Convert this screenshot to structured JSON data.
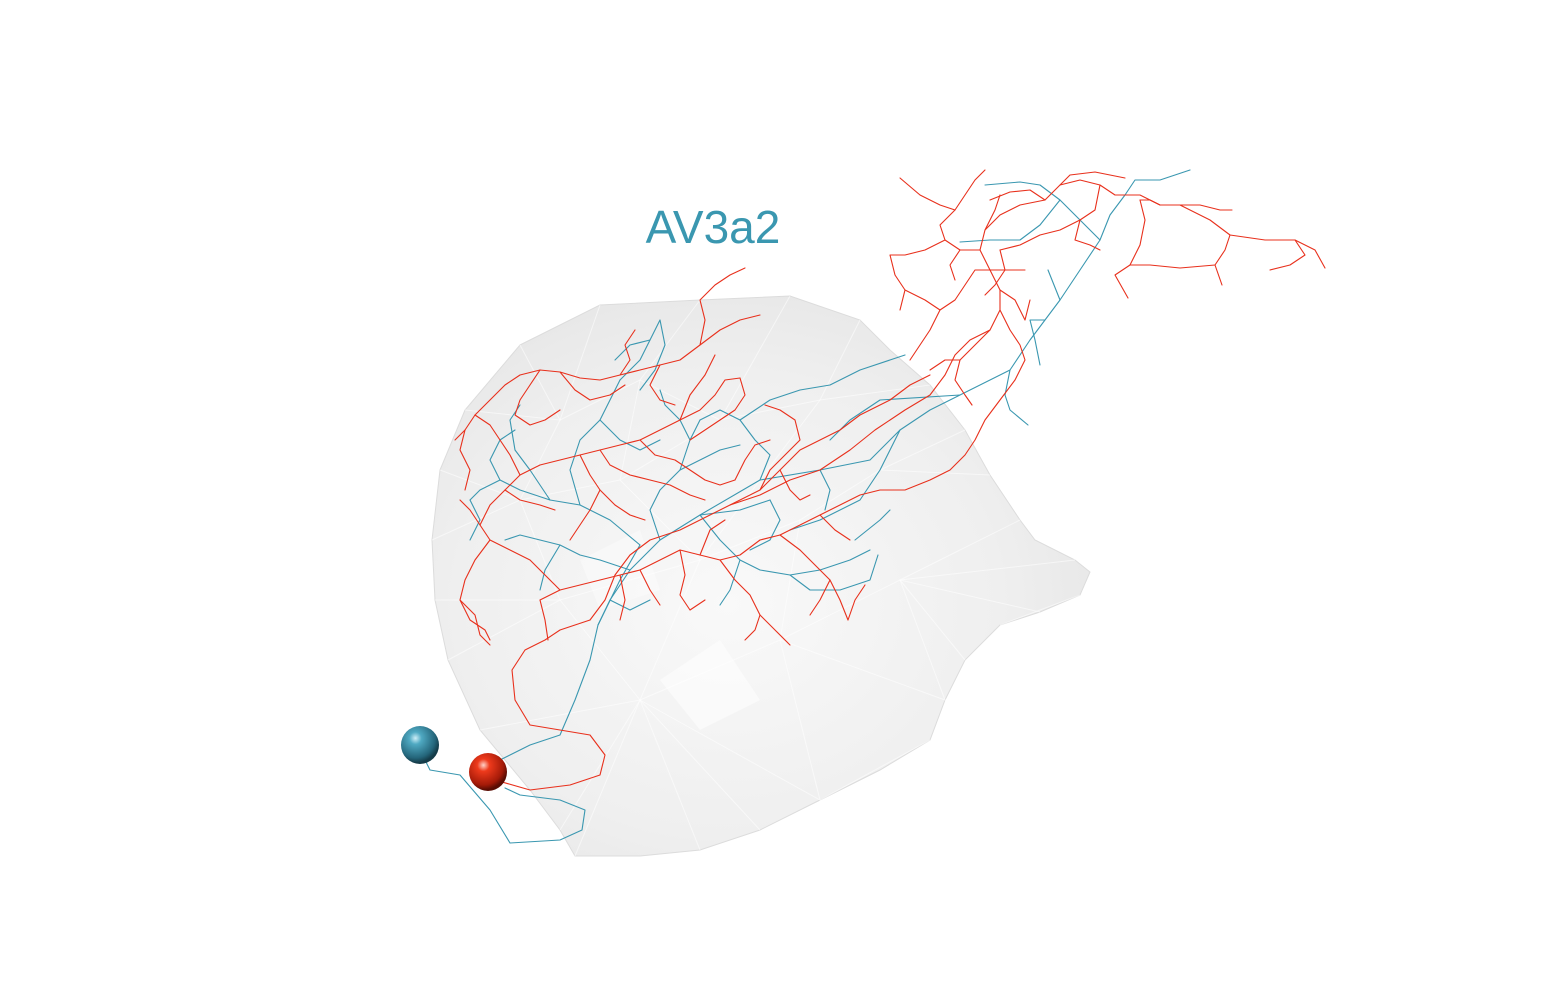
{
  "title": "AV3a2",
  "colors": {
    "background": "#ffffff",
    "mesh_fill": "#e6e6e6",
    "mesh_edge": "#d9d9d9",
    "neuron_blue": "#3a97b0",
    "neuron_red": "#e8301c",
    "label": "#3a97b0"
  },
  "legend": {
    "neurons": [
      {
        "name": "blue-neuron",
        "color": "#3a97b0"
      },
      {
        "name": "red-neuron",
        "color": "#e8301c"
      }
    ]
  }
}
